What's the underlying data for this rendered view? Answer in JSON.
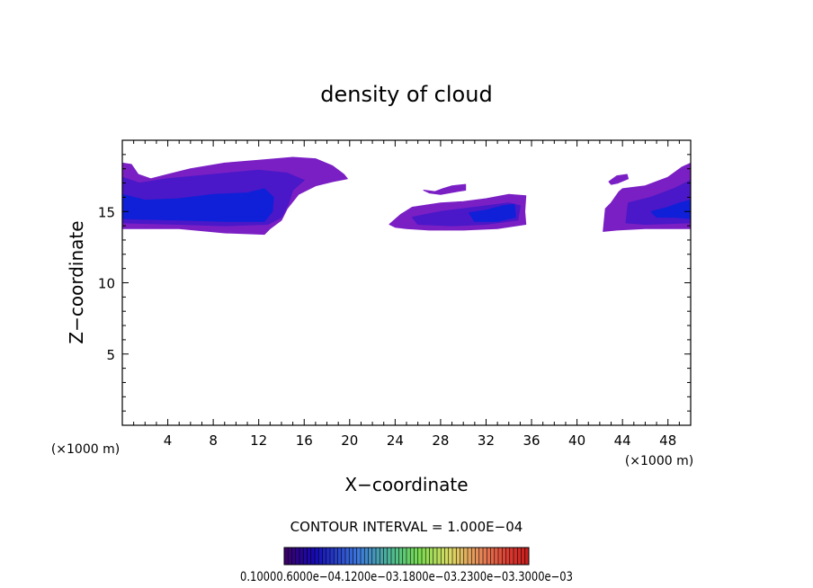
{
  "chart_data": {
    "type": "heatmap",
    "title": "density of cloud",
    "xlabel": "X−coordinate",
    "ylabel": "Z−coordinate",
    "x_unit_left": "(×1000 m)",
    "x_unit_right": "(×1000 m)",
    "xlim": [
      0,
      50
    ],
    "ylim": [
      0,
      20
    ],
    "x_ticks": [
      4,
      8,
      12,
      16,
      20,
      24,
      28,
      32,
      36,
      40,
      44,
      48
    ],
    "y_ticks": [
      5,
      10,
      15
    ],
    "contour_interval": "CONTOUR INTERVAL = 1.000E−04",
    "colorbar_labels": [
      "0.1000",
      "0.6000e−04",
      "0.1200e−03",
      "0.1800e−03",
      "0.2300e−03",
      "0.3000e−03"
    ],
    "colorbar_label_text": "0.10000.6000e−04.1200e−03.1800e−03.2300e−03.3000e−03",
    "colors": {
      "outer": "#7a1fc4",
      "mid": "#4a18c8",
      "core": "#1020d8"
    },
    "clouds": [
      {
        "name": "cloud-left",
        "outer": [
          [
            0,
            18.4
          ],
          [
            0.8,
            18.3
          ],
          [
            1.4,
            17.6
          ],
          [
            2.5,
            17.3
          ],
          [
            4,
            17.6
          ],
          [
            6,
            18.0
          ],
          [
            9,
            18.4
          ],
          [
            12,
            18.6
          ],
          [
            15,
            18.8
          ],
          [
            17,
            18.7
          ],
          [
            18.5,
            18.2
          ],
          [
            19.5,
            17.6
          ],
          [
            19.8,
            17.3
          ],
          [
            18.5,
            17.1
          ],
          [
            17,
            16.8
          ],
          [
            15.5,
            16.2
          ],
          [
            14.5,
            15.2
          ],
          [
            14,
            14.4
          ],
          [
            13,
            13.8
          ],
          [
            12.5,
            13.4
          ],
          [
            9,
            13.5
          ],
          [
            5,
            13.8
          ],
          [
            0,
            13.8
          ]
        ],
        "mid": [
          [
            0,
            17.4
          ],
          [
            1.5,
            17.0
          ],
          [
            4,
            17.3
          ],
          [
            8,
            17.6
          ],
          [
            12,
            17.9
          ],
          [
            14.5,
            17.7
          ],
          [
            16,
            17.2
          ],
          [
            15,
            16.5
          ],
          [
            14.6,
            15.5
          ],
          [
            14,
            14.6
          ],
          [
            12.8,
            14.1
          ],
          [
            9,
            14.0
          ],
          [
            5,
            14.1
          ],
          [
            0,
            14.2
          ]
        ],
        "core": [
          [
            0,
            16.2
          ],
          [
            2,
            15.8
          ],
          [
            5,
            15.9
          ],
          [
            8,
            16.2
          ],
          [
            11,
            16.3
          ],
          [
            12.5,
            16.6
          ],
          [
            13.3,
            16.0
          ],
          [
            13.2,
            15.0
          ],
          [
            12.5,
            14.3
          ],
          [
            9,
            14.3
          ],
          [
            5,
            14.4
          ],
          [
            0,
            14.5
          ]
        ]
      },
      {
        "name": "cloud-middle",
        "outer": [
          [
            23.5,
            14.1
          ],
          [
            24.5,
            14.8
          ],
          [
            25.5,
            15.3
          ],
          [
            28,
            15.6
          ],
          [
            30,
            15.7
          ],
          [
            32,
            15.9
          ],
          [
            34,
            16.2
          ],
          [
            35.5,
            16.1
          ],
          [
            35.4,
            15.0
          ],
          [
            35.5,
            14.1
          ],
          [
            33,
            13.8
          ],
          [
            30,
            13.7
          ],
          [
            27,
            13.7
          ],
          [
            25,
            13.8
          ],
          [
            24,
            13.9
          ]
        ],
        "mid": [
          [
            25.5,
            14.6
          ],
          [
            28,
            15.0
          ],
          [
            30,
            15.2
          ],
          [
            32,
            15.4
          ],
          [
            34,
            15.6
          ],
          [
            35,
            15.4
          ],
          [
            34.8,
            14.4
          ],
          [
            32,
            14.1
          ],
          [
            29,
            14.0
          ],
          [
            26,
            14.1
          ]
        ],
        "core": [
          [
            30.5,
            14.9
          ],
          [
            32,
            15.1
          ],
          [
            33.5,
            15.4
          ],
          [
            34.5,
            15.5
          ],
          [
            34.6,
            14.6
          ],
          [
            33,
            14.3
          ],
          [
            31,
            14.3
          ]
        ]
      },
      {
        "name": "cloud-middle-wisp",
        "outer": [
          [
            26.5,
            16.5
          ],
          [
            27.5,
            16.4
          ],
          [
            28.2,
            16.6
          ],
          [
            29,
            16.8
          ],
          [
            30.2,
            16.9
          ],
          [
            30.2,
            16.5
          ],
          [
            29.4,
            16.4
          ],
          [
            28,
            16.2
          ],
          [
            27,
            16.3
          ]
        ],
        "mid": [],
        "core": []
      },
      {
        "name": "cloud-right",
        "outer": [
          [
            42.3,
            13.6
          ],
          [
            42.5,
            15.2
          ],
          [
            43,
            15.6
          ],
          [
            43.7,
            16.4
          ],
          [
            44,
            16.6
          ],
          [
            46,
            16.8
          ],
          [
            48,
            17.4
          ],
          [
            49.2,
            18.1
          ],
          [
            50,
            18.4
          ],
          [
            50,
            13.8
          ],
          [
            46,
            13.8
          ],
          [
            43.5,
            13.7
          ]
        ],
        "mid": [
          [
            44.5,
            15.6
          ],
          [
            46.5,
            16.0
          ],
          [
            48.5,
            16.6
          ],
          [
            50,
            17.2
          ],
          [
            50,
            14.2
          ],
          [
            46,
            14.1
          ],
          [
            44.3,
            14.2
          ]
        ],
        "core": [
          [
            46.5,
            15.0
          ],
          [
            48,
            15.3
          ],
          [
            49,
            15.6
          ],
          [
            50,
            15.8
          ],
          [
            50,
            14.5
          ],
          [
            48.5,
            14.6
          ],
          [
            47,
            14.6
          ]
        ]
      },
      {
        "name": "cloud-right-wisp",
        "outer": [
          [
            42.8,
            17.1
          ],
          [
            43.5,
            17.5
          ],
          [
            44.4,
            17.6
          ],
          [
            44.5,
            17.3
          ],
          [
            43.6,
            17.0
          ],
          [
            43,
            16.9
          ]
        ],
        "mid": [],
        "core": []
      }
    ],
    "grid": false,
    "legend": "bottom-colorbar"
  }
}
